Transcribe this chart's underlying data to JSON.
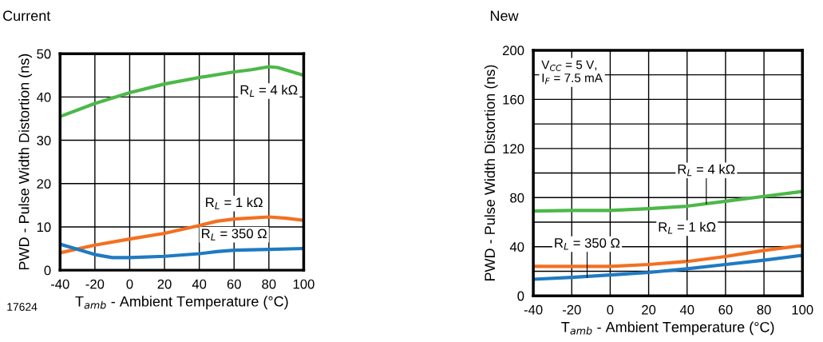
{
  "chart_data": [
    {
      "type": "line",
      "title": "Current",
      "xlabel": "T$_{amb}$ - Ambient Temperature (°C)",
      "ylabel": "PWD - Pulse Width Distortion (ns)",
      "xlim": [
        -40,
        100
      ],
      "xticks": [
        -40,
        -20,
        0,
        20,
        40,
        60,
        80,
        100
      ],
      "ylim": [
        0,
        50
      ],
      "yticks": [
        0,
        10,
        20,
        30,
        40,
        50
      ],
      "grid": true,
      "series": [
        {
          "color": "#4cb848",
          "x": [
            -40,
            -20,
            0,
            20,
            40,
            60,
            70,
            80,
            85,
            90,
            100
          ],
          "values": [
            35.5,
            38.5,
            41,
            43,
            44.5,
            45.8,
            46.3,
            47,
            46.8,
            46.2,
            45
          ]
        },
        {
          "color": "#f37021",
          "x": [
            -40,
            -20,
            0,
            20,
            40,
            50,
            60,
            80,
            90,
            100
          ],
          "values": [
            4,
            5.8,
            7.2,
            8.5,
            10.3,
            11.3,
            11.8,
            12.3,
            12,
            11.5
          ]
        },
        {
          "color": "#1f7ac2",
          "x": [
            -40,
            -30,
            -20,
            -10,
            0,
            20,
            40,
            50,
            60,
            80,
            100
          ],
          "values": [
            6,
            4.8,
            3.6,
            2.9,
            2.9,
            3.2,
            3.8,
            4.3,
            4.6,
            4.8,
            5
          ]
        }
      ],
      "annotations": [
        {
          "text": "R$_{L}$ = 4 kΩ",
          "x": 80,
          "y": 47
        },
        {
          "text": "R$_{L}$ = 1 kΩ",
          "x": 60,
          "y": 11.8
        },
        {
          "text": "R$_{L}$ = 350 Ω",
          "x": 60,
          "y": 4.6
        },
        "17624"
      ]
    },
    {
      "type": "line",
      "title": "New",
      "xlabel": "T$_{amb}$ - Ambient Temperature (°C)",
      "ylabel": "PWD - Pulse Width Distortion (ns)",
      "xlim": [
        -40,
        100
      ],
      "xticks": [
        -40,
        -20,
        0,
        20,
        40,
        60,
        80,
        100
      ],
      "ylim": [
        0,
        200
      ],
      "yticks": [
        0,
        {
          "value": 20,
          "label": null
        },
        40,
        {
          "value": 60,
          "label": null
        },
        80,
        {
          "value": 100,
          "label": null
        },
        120,
        {
          "value": 140,
          "label": null
        },
        160,
        {
          "value": 180,
          "label": null
        },
        200
      ],
      "grid": true,
      "series": [
        {
          "color": "#4cb848",
          "x": [
            -40,
            -20,
            0,
            20,
            40,
            60,
            80,
            100
          ],
          "values": [
            69,
            69.5,
            69.5,
            71,
            73,
            77,
            81,
            85
          ]
        },
        {
          "color": "#f37021",
          "x": [
            -40,
            -20,
            0,
            20,
            40,
            60,
            80,
            100
          ],
          "values": [
            24,
            24,
            24,
            25.5,
            28,
            32,
            37,
            41
          ]
        },
        {
          "color": "#1f7ac2",
          "x": [
            -40,
            -20,
            0,
            20,
            40,
            60,
            80,
            100
          ],
          "values": [
            13.5,
            15,
            17,
            19,
            22,
            25.5,
            29,
            33
          ]
        }
      ],
      "annotations": [
        {
          "text": "R$_{L}$ = 4 kΩ",
          "x": 50,
          "y": 75
        },
        {
          "text": "R$_{L}$ = 1 kΩ",
          "x": 40,
          "y": 28
        },
        {
          "text": "R$_{L}$ = 350 Ω",
          "x": -12,
          "y": 15
        },
        "V$_{CC}$ = 5 V,\nI$_{F}$ = 7.5 mA"
      ]
    }
  ]
}
